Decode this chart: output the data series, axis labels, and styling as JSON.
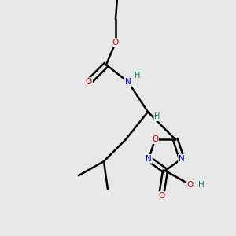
{
  "bg_color": "#e8e8e8",
  "atom_colors": {
    "C": "#000000",
    "N": "#0000cc",
    "O": "#cc0000",
    "H": "#008080"
  },
  "bond_color": "#000000",
  "bond_width": 1.8,
  "fig_w": 3.0,
  "fig_h": 3.0,
  "dpi": 100
}
